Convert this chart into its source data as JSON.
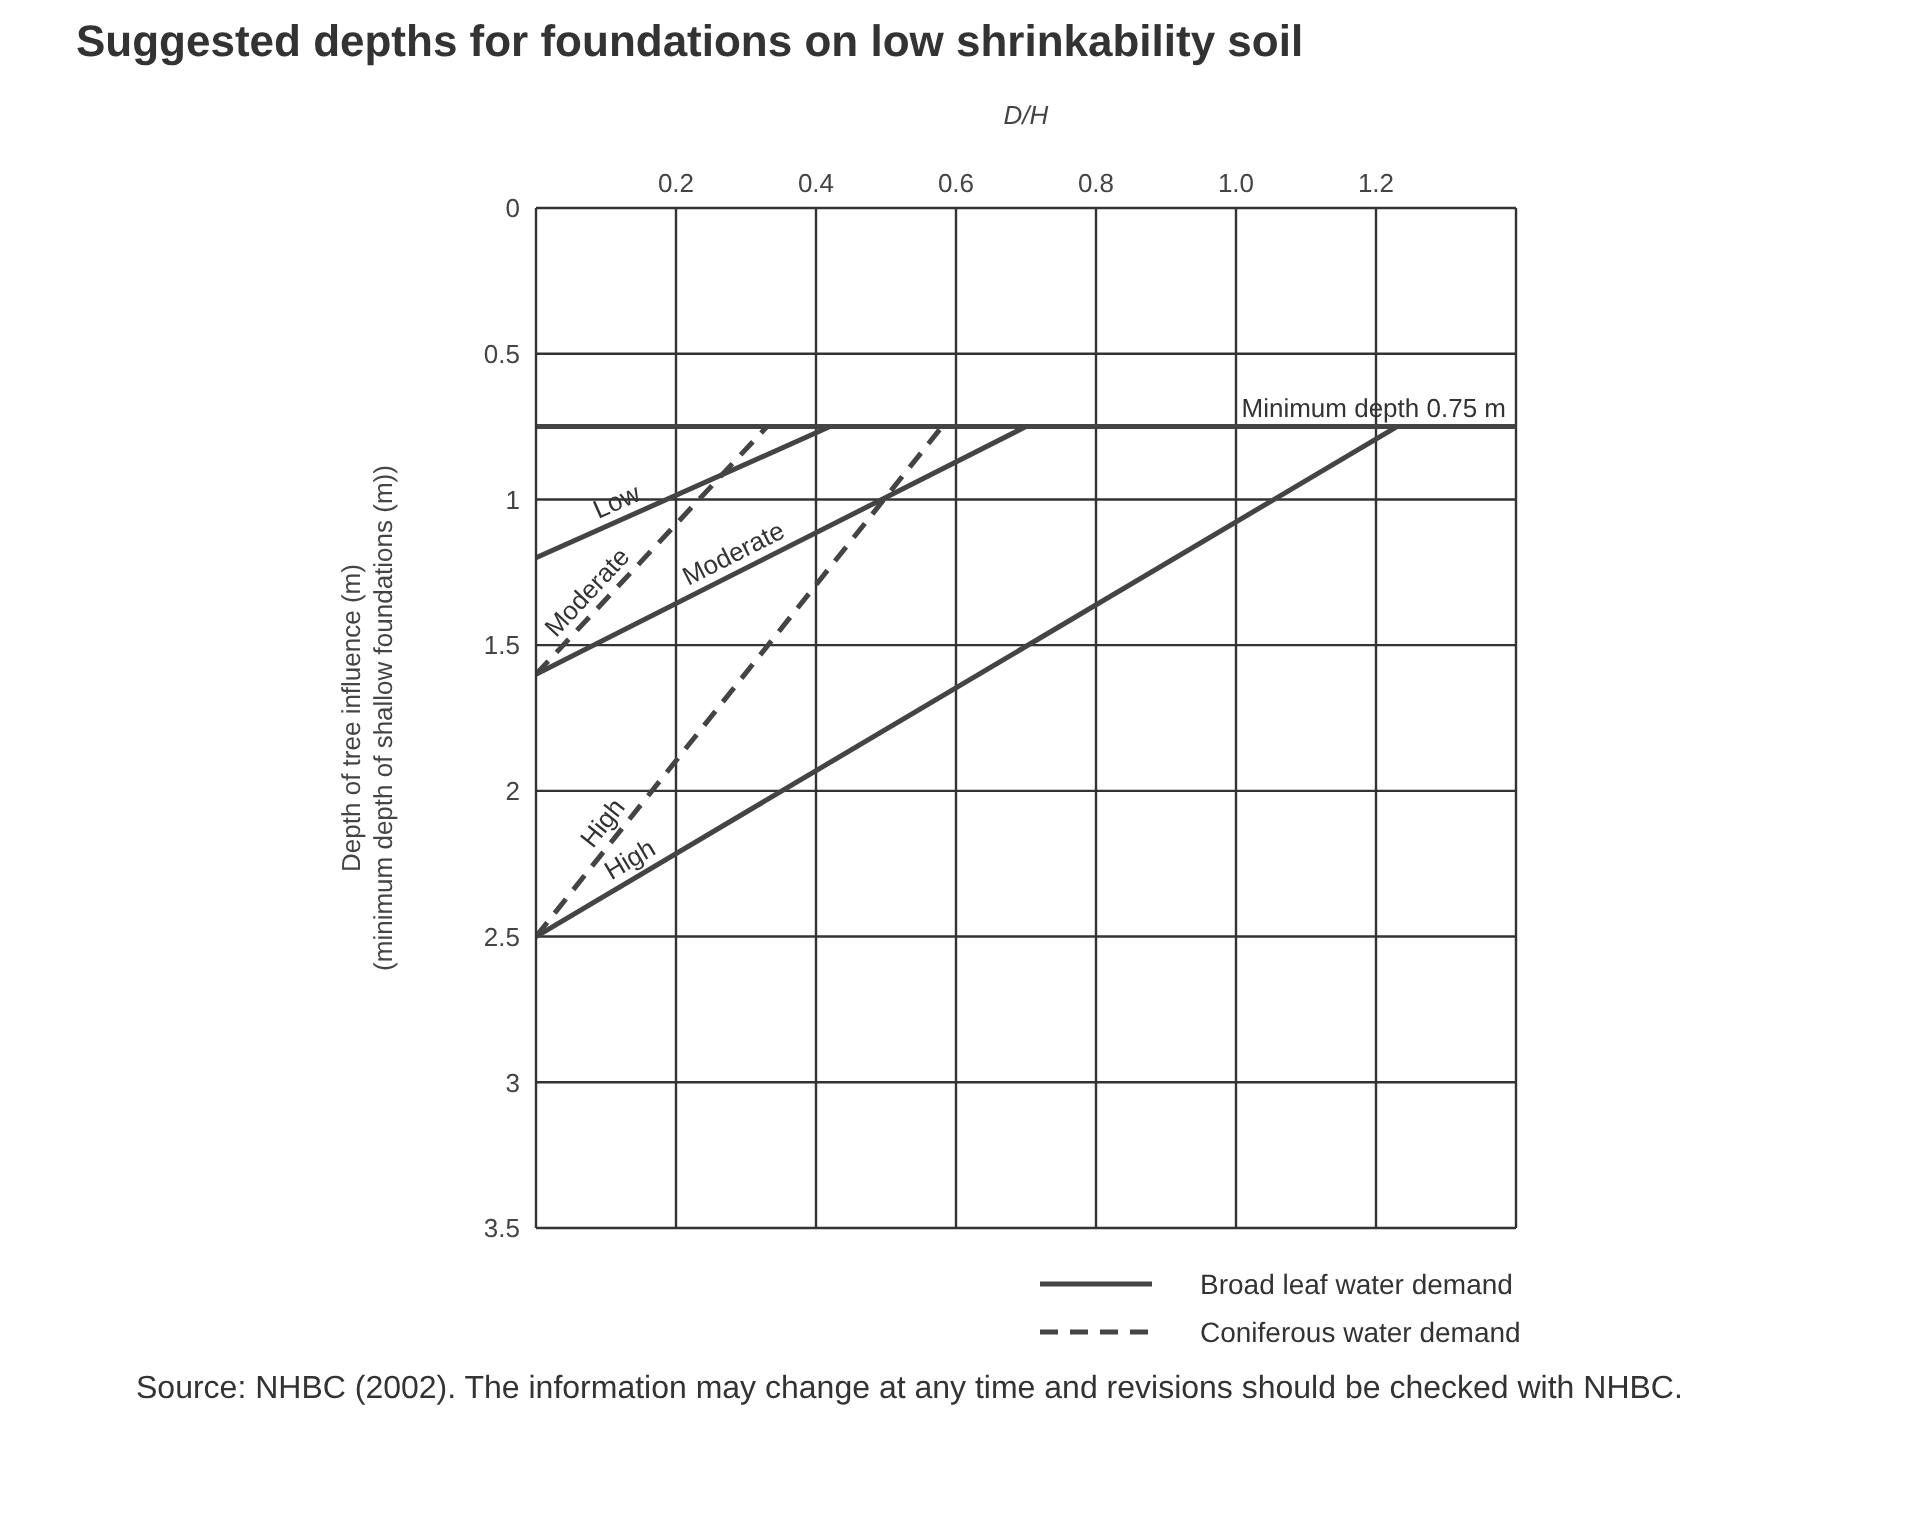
{
  "chart_data": {
    "type": "line",
    "title": "Suggested depths for foundations on low shrinkability soil",
    "xlabel": "D/H",
    "ylabel": "Depth of tree influence (m)\n(minimum depth of shallow foundations (m))",
    "xlim": [
      0,
      1.4
    ],
    "xticks": [
      {
        "value": 0,
        "label": null
      },
      0.2,
      0.4,
      0.6,
      0.8,
      {
        "value": 1.0,
        "label": "1.0"
      },
      1.2,
      {
        "value": 1.4,
        "label": null
      }
    ],
    "ylim": [
      3.5,
      0
    ],
    "yticks": [
      0,
      0.5,
      1.0,
      1.5,
      2.0,
      2.5,
      3.0,
      3.5
    ],
    "grid": true,
    "ref_lines": [
      {
        "axis": "y",
        "value": 0.75,
        "label": "Minimum depth 0.75 m",
        "color": "#444444"
      }
    ],
    "series": [
      {
        "name": "Low",
        "color": "#444444",
        "line_style": "solid",
        "x": [
          0,
          0.42
        ],
        "values": [
          1.2,
          0.75
        ]
      },
      {
        "name": "Moderate",
        "color": "#444444",
        "line_style": "solid",
        "x": [
          0,
          0.7
        ],
        "values": [
          1.6,
          0.75
        ]
      },
      {
        "name": "High",
        "color": "#444444",
        "line_style": "solid",
        "x": [
          0,
          1.23
        ],
        "values": [
          2.5,
          0.75
        ]
      },
      {
        "name": "Moderate",
        "color": "#444444",
        "line_style": "dashed",
        "x": [
          0,
          0.33
        ],
        "values": [
          1.6,
          0.75
        ]
      },
      {
        "name": "High",
        "color": "#444444",
        "line_style": "dashed",
        "x": [
          0,
          0.58
        ],
        "values": [
          2.5,
          0.75
        ]
      }
    ],
    "annotations": [
      "Broad leaf water demand",
      "Coniferous water demand",
      "Source: NHBC (2002). The information may change at any time and revisions should be checked with NHBC."
    ]
  }
}
